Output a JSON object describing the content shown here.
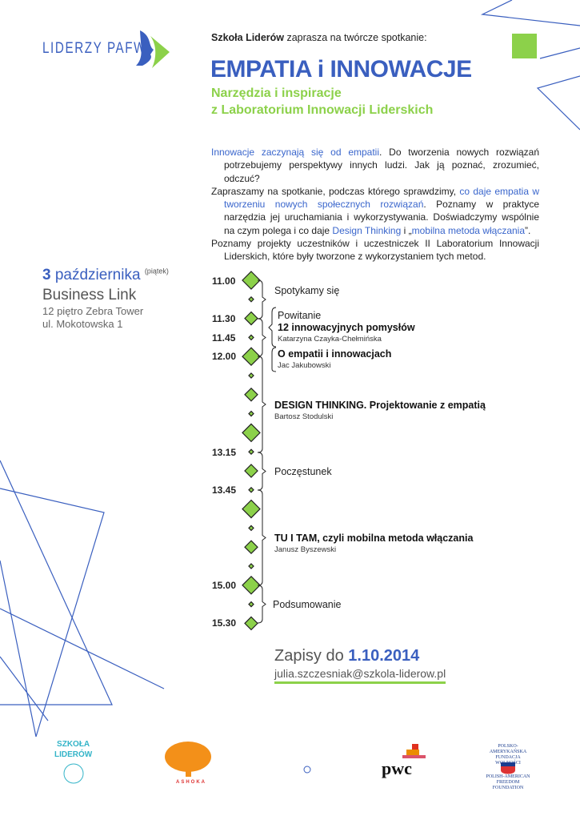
{
  "header": {
    "logo_text": "LIDERZY PAFW",
    "intro_bold": "Szkoła Liderów",
    "intro_rest": " zaprasza na twórcze spotkanie:",
    "title": "EMPATIA i INNOWACJE",
    "subtitle_1": "Narzędzia i inspiracje",
    "subtitle_2": "z Laboratorium Innowacji Liderskich"
  },
  "description": {
    "p1_blue": "Innowacje zaczynają się od empatii",
    "p1_rest": ". Do tworzenia nowych rozwiązań potrzebujemy perspektywy innych ludzi. Jak ją poznać, zrozumieć, odczuć?",
    "p2_a": "Zapraszamy na spotkanie, podczas którego sprawdzimy, ",
    "p2_blue1": "co daje empatia w tworzeniu nowych społecznych rozwiązań",
    "p2_b": ". Poznamy w praktyce narzędzia jej uruchamiania i wykorzystywania. Doświadczymy wspólnie na czym polega i co daje ",
    "p2_blue2": "Design Thinking",
    "p2_c": " i „",
    "p2_blue3": "mobilna metoda włączania",
    "p2_d": "”.",
    "p3": "Poznamy projekty uczestników i uczestniczek II Laboratorium Innowacji Liderskich, które były tworzone z wykorzystaniem tych metod."
  },
  "event": {
    "day": "3",
    "month": " października",
    "weekday": "(piątek)",
    "venue": "Business Link",
    "address_1": "12 piętro Zebra Tower",
    "address_2": "ul. Mokotowska 1"
  },
  "times": [
    "11.00",
    "11.30",
    "11.45",
    "12.00",
    "13.15",
    "13.45",
    "15.00",
    "15.30"
  ],
  "agenda": {
    "a1": "Spotykamy się",
    "a2": "Powitanie",
    "a2b": "12 innowacyjnych pomysłów",
    "a2s": "Katarzyna Czayka-Chełmińska",
    "a3": "O empatii i innowacjach",
    "a3s": "Jac Jakubowski",
    "a4": "DESIGN THINKING. Projektowanie z empatią",
    "a4s": "Bartosz Stodulski",
    "a5": "Poczęstunek",
    "a6": "TU I TAM, czyli mobilna metoda włączania",
    "a6s": "Janusz Byszewski",
    "a7": "Podsumowanie"
  },
  "registration": {
    "label": "Zapisy do ",
    "deadline": "1.10.2014",
    "email": "julia.szczesniak@szkola-liderow.pl"
  },
  "sponsors": {
    "szkola_1": "SZKOŁA",
    "szkola_2": "LIDERÓW",
    "ashoka": "ASHOKA",
    "registered": "®",
    "pwc": "pwc",
    "paf_pl_1": "POLSKO-AMERYKAŃSKA",
    "paf_pl_2": "FUNDACJA WOLNOŚCI",
    "paf_en_1": "POLISH-AMERICAN",
    "paf_en_2": "FREEDOM FOUNDATION"
  },
  "colors": {
    "blue": "#3a5fbf",
    "green": "#8cd14a"
  }
}
